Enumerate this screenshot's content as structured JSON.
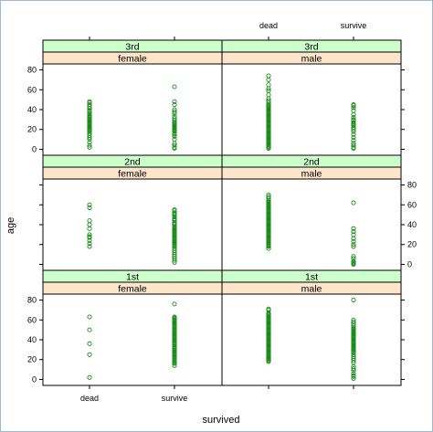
{
  "chart_data": {
    "type": "scatter",
    "title": "",
    "xlabel": "survived",
    "ylabel": "age",
    "x_categories": [
      "dead",
      "survive"
    ],
    "ylim": [
      -6,
      86
    ],
    "y_ticks": [
      0,
      20,
      40,
      60,
      80
    ],
    "grid": false,
    "legend": "none",
    "colors": {
      "point": "#1a8a1a",
      "strip_class": "#ccffcc",
      "strip_sex": "#ffe5cc",
      "panel_border": "#000000"
    },
    "panels": [
      {
        "class": "3rd",
        "sex": "female",
        "points": {
          "dead": [
            2,
            4,
            7,
            10,
            12,
            14,
            16,
            18,
            19,
            20,
            21,
            22,
            23,
            24,
            25,
            26,
            27,
            28,
            29,
            30,
            31,
            32,
            33,
            34,
            36,
            38,
            39,
            41,
            43,
            45,
            47,
            48
          ],
          "survive": [
            1,
            2,
            4,
            6,
            10,
            13,
            15,
            16,
            18,
            19,
            20,
            21,
            22,
            23,
            24,
            25,
            26,
            27,
            29,
            31,
            33,
            36,
            38,
            40,
            45,
            48,
            63
          ]
        }
      },
      {
        "class": "3rd",
        "sex": "male",
        "points": {
          "dead": [
            1,
            2,
            3,
            4,
            5,
            6,
            7,
            8,
            9,
            10,
            11,
            12,
            13,
            14,
            15,
            16,
            17,
            18,
            19,
            20,
            21,
            22,
            23,
            24,
            25,
            26,
            27,
            28,
            29,
            30,
            31,
            32,
            33,
            34,
            35,
            36,
            37,
            38,
            39,
            40,
            41,
            42,
            43,
            44,
            45,
            47,
            49,
            51,
            55,
            59,
            61,
            65,
            70,
            74
          ],
          "survive": [
            1,
            2,
            4,
            6,
            9,
            12,
            15,
            18,
            20,
            22,
            24,
            25,
            26,
            27,
            29,
            30,
            32,
            35,
            39,
            42,
            44,
            45
          ]
        }
      },
      {
        "class": "2nd",
        "sex": "female",
        "points": {
          "dead": [
            18,
            21,
            24,
            27,
            28,
            30,
            36,
            40,
            44,
            57,
            60
          ],
          "survive": [
            2,
            4,
            6,
            8,
            10,
            12,
            14,
            16,
            18,
            19,
            20,
            21,
            22,
            23,
            24,
            25,
            26,
            27,
            28,
            29,
            30,
            31,
            32,
            33,
            34,
            35,
            36,
            37,
            38,
            40,
            41,
            42,
            44,
            45,
            46,
            48,
            50,
            51,
            52,
            54,
            55
          ]
        }
      },
      {
        "class": "2nd",
        "sex": "male",
        "points": {
          "dead": [
            16,
            18,
            19,
            20,
            21,
            22,
            23,
            24,
            25,
            26,
            27,
            28,
            29,
            30,
            31,
            32,
            33,
            34,
            35,
            36,
            37,
            38,
            39,
            40,
            41,
            42,
            43,
            44,
            45,
            46,
            47,
            48,
            49,
            50,
            51,
            52,
            53,
            54,
            55,
            56,
            57,
            58,
            59,
            60,
            61,
            62,
            63,
            64,
            66,
            68,
            70
          ],
          "survive": [
            0,
            1,
            2,
            3,
            6,
            8,
            18,
            20,
            23,
            26,
            30,
            33,
            36,
            62
          ]
        }
      },
      {
        "class": "1st",
        "sex": "female",
        "points": {
          "dead": [
            2,
            25,
            36,
            50,
            63
          ],
          "survive": [
            14,
            16,
            17,
            18,
            19,
            21,
            22,
            23,
            24,
            25,
            26,
            27,
            28,
            29,
            30,
            31,
            32,
            33,
            35,
            36,
            37,
            38,
            39,
            40,
            41,
            42,
            43,
            44,
            45,
            46,
            47,
            48,
            49,
            50,
            51,
            52,
            53,
            54,
            55,
            56,
            57,
            58,
            59,
            60,
            61,
            62,
            63,
            76
          ]
        }
      },
      {
        "class": "1st",
        "sex": "male",
        "points": {
          "dead": [
            18,
            19,
            20,
            21,
            22,
            23,
            24,
            25,
            26,
            27,
            28,
            29,
            30,
            31,
            32,
            33,
            34,
            35,
            36,
            37,
            38,
            39,
            40,
            41,
            42,
            43,
            44,
            45,
            46,
            47,
            48,
            49,
            50,
            51,
            52,
            53,
            54,
            55,
            56,
            57,
            58,
            59,
            60,
            61,
            62,
            63,
            64,
            65,
            66,
            67,
            70,
            71
          ],
          "survive": [
            1,
            3,
            4,
            6,
            9,
            11,
            13,
            17,
            19,
            21,
            23,
            25,
            27,
            28,
            29,
            30,
            31,
            32,
            33,
            34,
            35,
            36,
            37,
            38,
            39,
            40,
            41,
            42,
            43,
            44,
            45,
            46,
            47,
            48,
            49,
            50,
            51,
            52,
            54,
            56,
            58,
            60,
            80
          ]
        }
      }
    ]
  }
}
